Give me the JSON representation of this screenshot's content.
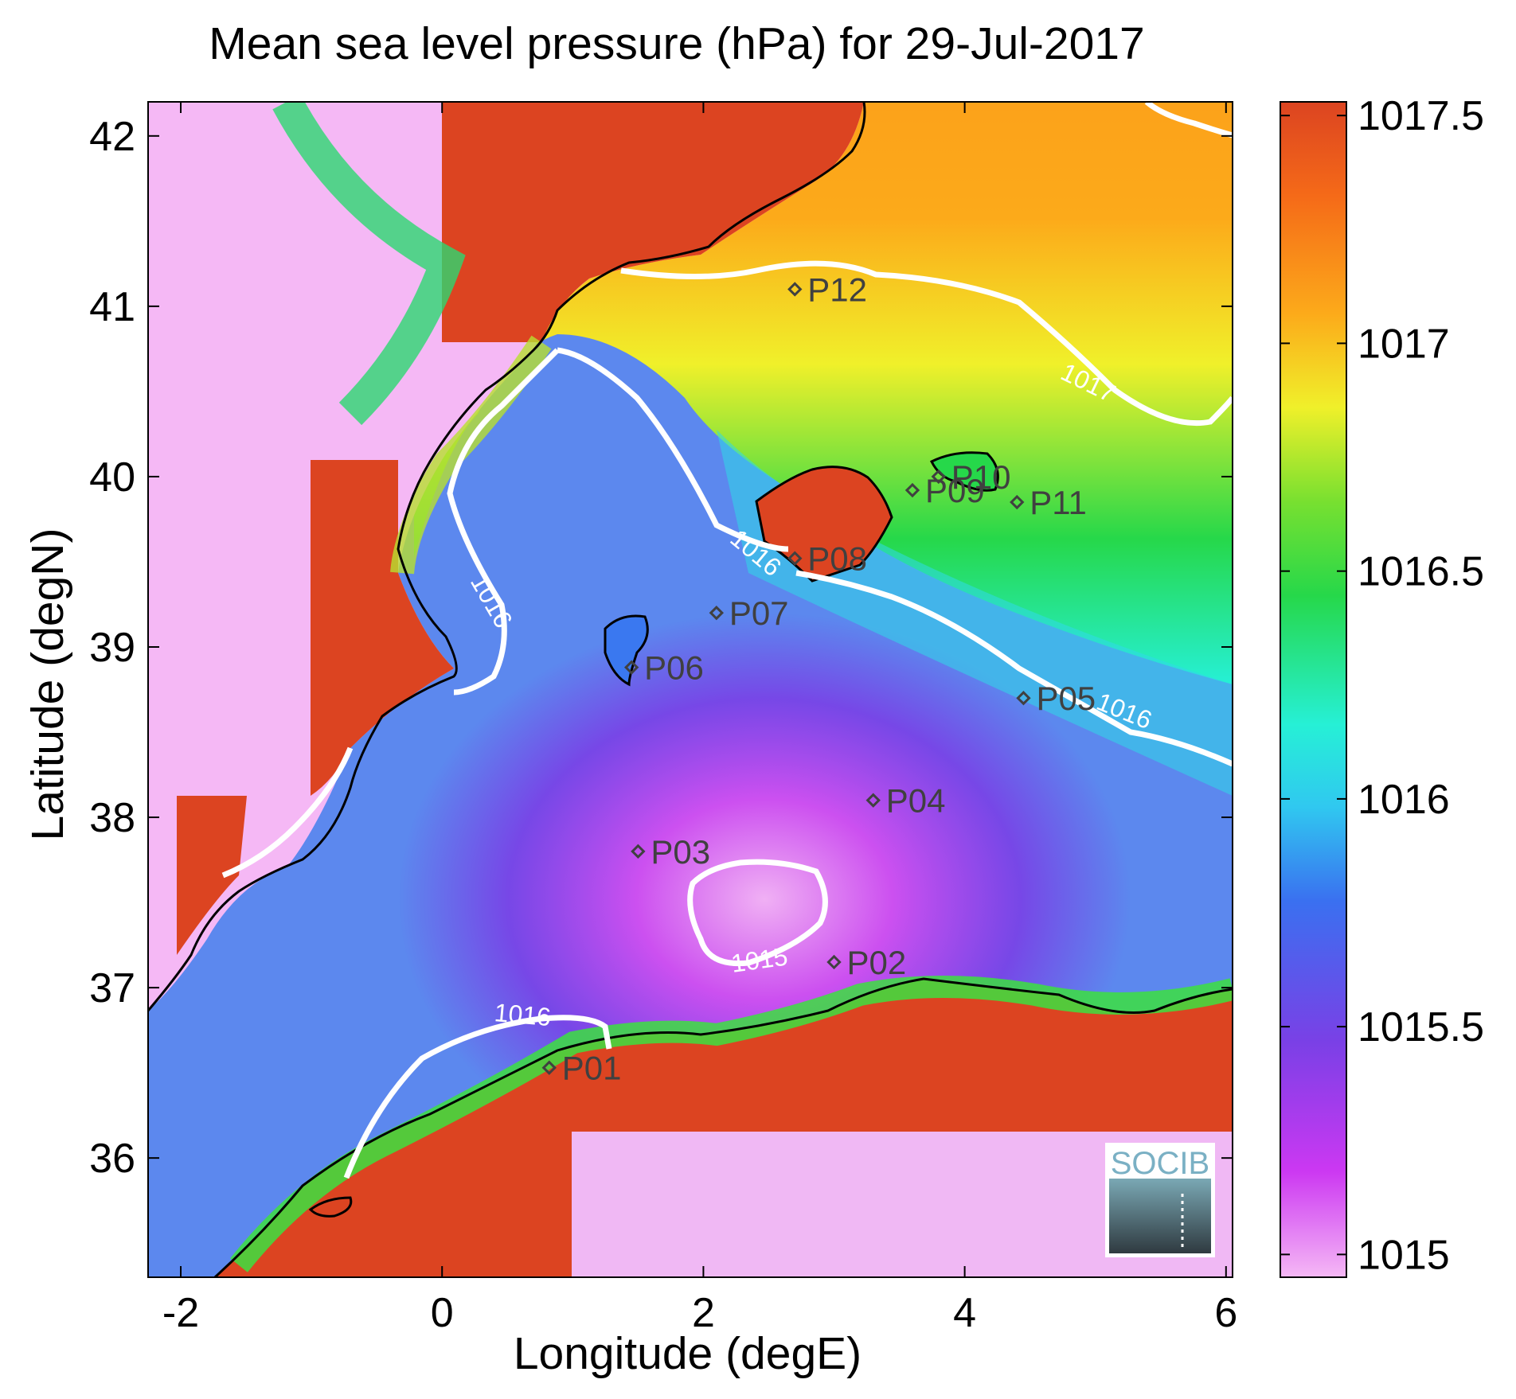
{
  "title": "Mean sea level pressure (hPa) for 29-Jul-2017",
  "map": {
    "xlabel": "Longitude (degE)",
    "ylabel": "Latitude (degN)",
    "x_ticks": [
      "-2",
      "0",
      "2",
      "4",
      "6"
    ],
    "y_ticks": [
      "36",
      "37",
      "38",
      "39",
      "40",
      "41",
      "42"
    ],
    "x_range": [
      -2.25,
      6.05
    ],
    "y_range": [
      35.3,
      42.2
    ],
    "contours": [
      {
        "label": "1017"
      },
      {
        "label": "1016"
      },
      {
        "label": "1016"
      },
      {
        "label": "1016"
      },
      {
        "label": "1016"
      },
      {
        "label": "1015"
      }
    ],
    "stations": [
      {
        "name": "P01",
        "lon": 0.82,
        "lat": 36.53
      },
      {
        "name": "P02",
        "lon": 3.0,
        "lat": 37.15
      },
      {
        "name": "P03",
        "lon": 1.5,
        "lat": 37.8
      },
      {
        "name": "P04",
        "lon": 3.3,
        "lat": 38.1
      },
      {
        "name": "P05",
        "lon": 4.45,
        "lat": 38.7
      },
      {
        "name": "P06",
        "lon": 1.45,
        "lat": 38.88
      },
      {
        "name": "P07",
        "lon": 2.1,
        "lat": 39.2
      },
      {
        "name": "P08",
        "lon": 2.7,
        "lat": 39.52
      },
      {
        "name": "P09",
        "lon": 3.6,
        "lat": 39.92
      },
      {
        "name": "P10",
        "lon": 3.8,
        "lat": 40.0
      },
      {
        "name": "P11",
        "lon": 4.4,
        "lat": 39.85
      },
      {
        "name": "P12",
        "lon": 2.7,
        "lat": 41.1
      }
    ],
    "logo_text": "SOCIB"
  },
  "colorbar": {
    "ticks": [
      "1015",
      "1015.5",
      "1016",
      "1016.5",
      "1017",
      "1017.5"
    ],
    "range": [
      1014.95,
      1017.53
    ],
    "colors": [
      "#f5b8f5",
      "#cc38f2",
      "#7a40e6",
      "#3a70f0",
      "#30c8f0",
      "#26f0d6",
      "#26d84a",
      "#78e030",
      "#f0f02a",
      "#fcaa1a",
      "#f56a18",
      "#dc4421"
    ]
  }
}
